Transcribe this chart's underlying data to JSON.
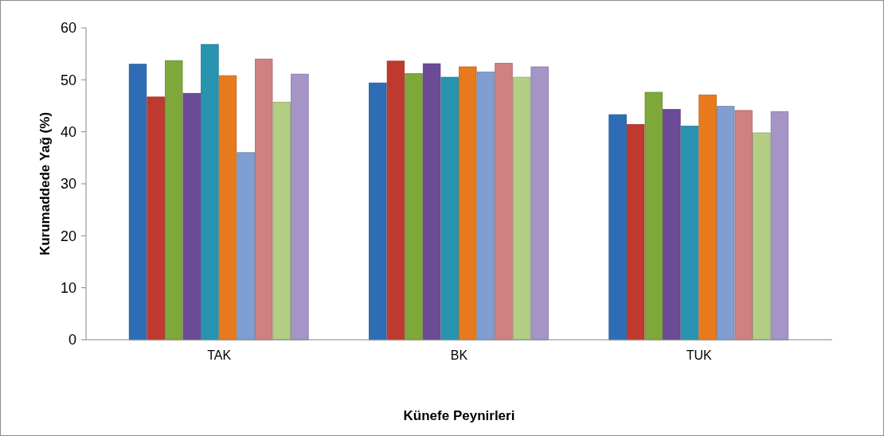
{
  "chart_data": {
    "type": "bar",
    "xlabel": "Künefe Peynirleri",
    "ylabel": "Kurumaddede Yağ (%)",
    "categories": [
      "TAK",
      "BK",
      "TUK"
    ],
    "series": [
      {
        "color": "#2e6db5",
        "values": [
          53,
          49.4,
          43.3
        ]
      },
      {
        "color": "#c0392f",
        "values": [
          46.7,
          53.6,
          41.4
        ]
      },
      {
        "color": "#7fa83a",
        "values": [
          53.7,
          51.2,
          47.6
        ]
      },
      {
        "color": "#6c4a96",
        "values": [
          47.4,
          53.1,
          44.3
        ]
      },
      {
        "color": "#2894b0",
        "values": [
          56.8,
          50.5,
          41.1
        ]
      },
      {
        "color": "#e87a1e",
        "values": [
          50.8,
          52.5,
          47.1
        ]
      },
      {
        "color": "#7f9fd2",
        "values": [
          36,
          51.5,
          44.9
        ]
      },
      {
        "color": "#d08080",
        "values": [
          54,
          53.2,
          44.1
        ]
      },
      {
        "color": "#b2cf84",
        "values": [
          45.7,
          50.5,
          39.8
        ]
      },
      {
        "color": "#a594c6",
        "values": [
          51.1,
          52.5,
          43.9
        ]
      }
    ],
    "ylim": [
      0,
      60
    ],
    "yticks": [
      0,
      10,
      20,
      30,
      40,
      50,
      60
    ],
    "grid": false
  }
}
